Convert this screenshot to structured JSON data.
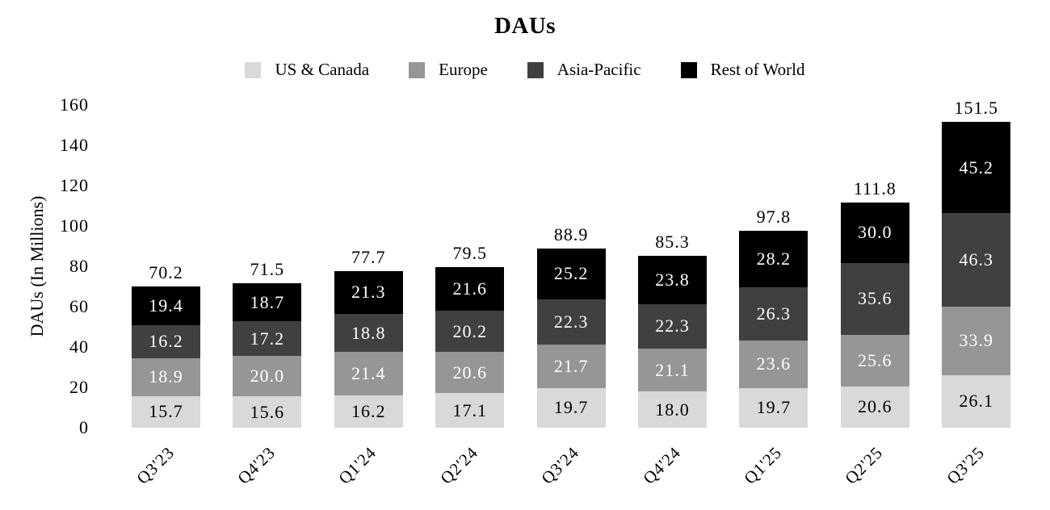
{
  "chart_data": {
    "type": "bar",
    "stacked": true,
    "title": "DAUs",
    "ylabel": "DAUs (In Millions)",
    "xlabel": "",
    "ylim": [
      0,
      160
    ],
    "ytick_step": 20,
    "grid": false,
    "legend_position": "top",
    "value_label_decimals": 1,
    "categories": [
      "Q3'23",
      "Q4'23",
      "Q1'24",
      "Q2'24",
      "Q3'24",
      "Q4'24",
      "Q1'25",
      "Q2'25",
      "Q3'25"
    ],
    "series": [
      {
        "name": "US & Canada",
        "color": "#d9d9d9",
        "label_color": "#000000",
        "values": [
          15.7,
          15.6,
          16.2,
          17.1,
          19.7,
          18.0,
          19.7,
          20.6,
          26.1
        ]
      },
      {
        "name": "Europe",
        "color": "#969696",
        "label_color": "#ffffff",
        "values": [
          18.9,
          20.0,
          21.4,
          20.6,
          21.7,
          21.1,
          23.6,
          25.6,
          33.9
        ]
      },
      {
        "name": "Asia-Pacific",
        "color": "#404040",
        "label_color": "#ffffff",
        "values": [
          16.2,
          17.2,
          18.8,
          20.2,
          22.3,
          22.3,
          26.3,
          35.6,
          46.3
        ]
      },
      {
        "name": "Rest of World",
        "color": "#000000",
        "label_color": "#ffffff",
        "values": [
          19.4,
          18.7,
          21.3,
          21.6,
          25.2,
          23.8,
          28.2,
          30.0,
          45.2
        ]
      }
    ],
    "totals": [
      70.2,
      71.5,
      77.7,
      79.5,
      88.9,
      85.3,
      97.8,
      111.8,
      151.5
    ]
  }
}
